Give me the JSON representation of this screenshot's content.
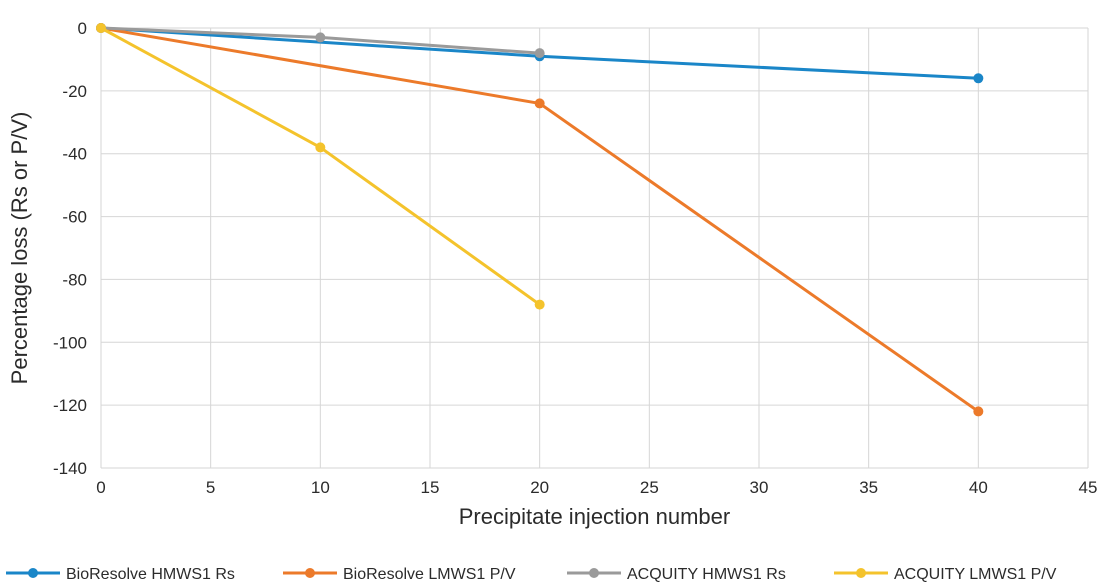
{
  "chart_data": {
    "type": "line",
    "title": "",
    "xlabel": "Precipitate injection number",
    "ylabel": "Percentage loss (Rs or P/V)",
    "xlim": [
      0,
      45
    ],
    "ylim": [
      -140,
      0
    ],
    "x_ticks": [
      0,
      5,
      10,
      15,
      20,
      25,
      30,
      35,
      40,
      45
    ],
    "y_ticks": [
      0,
      -20,
      -40,
      -60,
      -80,
      -100,
      -120,
      -140
    ],
    "grid": true,
    "legend_position": "bottom",
    "series": [
      {
        "name": "BioResolve HMWS1 Rs",
        "color": "#1a86c8",
        "points": [
          [
            0,
            0
          ],
          [
            20,
            -9
          ],
          [
            40,
            -16
          ]
        ]
      },
      {
        "name": "BioResolve LMWS1 P/V",
        "color": "#ec7a2a",
        "points": [
          [
            0,
            0
          ],
          [
            20,
            -24
          ],
          [
            40,
            -122
          ]
        ]
      },
      {
        "name": "ACQUITY HMWS1 Rs",
        "color": "#9a9a9a",
        "points": [
          [
            0,
            0
          ],
          [
            10,
            -3
          ],
          [
            20,
            -8
          ]
        ]
      },
      {
        "name": "ACQUITY LMWS1 P/V",
        "color": "#f4c32c",
        "points": [
          [
            0,
            0
          ],
          [
            10,
            -38
          ],
          [
            20,
            -88
          ]
        ]
      }
    ]
  }
}
